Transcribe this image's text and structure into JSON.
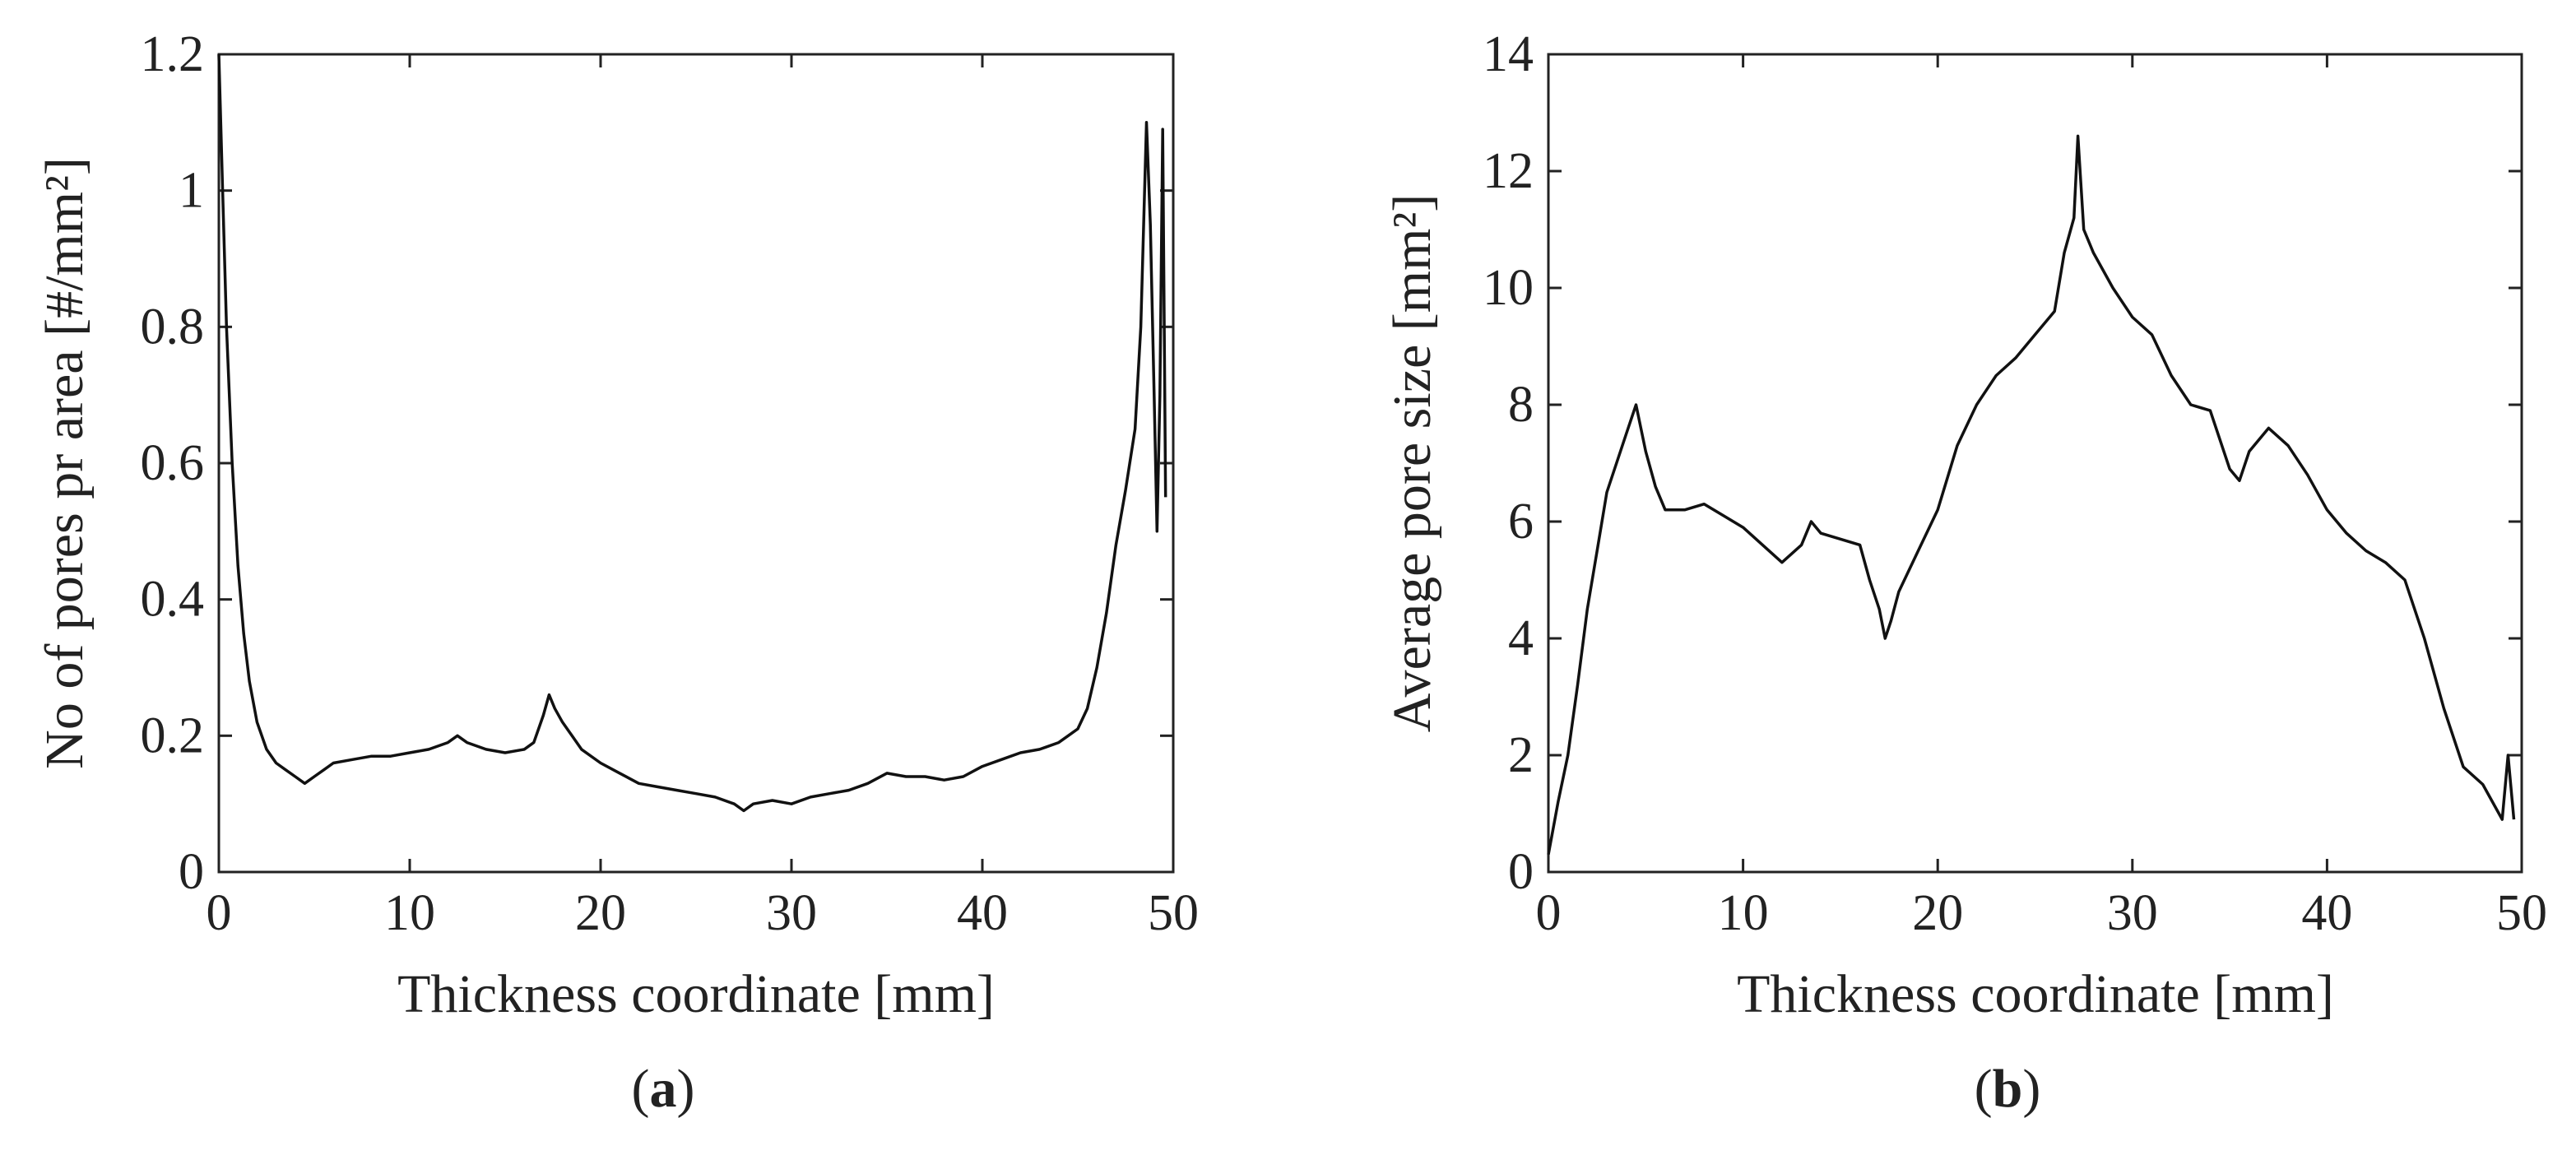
{
  "chart_data": [
    {
      "type": "line",
      "panel_label": "(a)",
      "xlabel": "Thickness coordinate [mm]",
      "ylabel": "No of pores pr area [#/mm²]",
      "xlim": [
        0,
        50
      ],
      "ylim": [
        0,
        1.2
      ],
      "xticks": [
        0,
        10,
        20,
        30,
        40,
        50
      ],
      "xtick_labels": [
        "0",
        "10",
        "20",
        "30",
        "40",
        "50"
      ],
      "yticks": [
        0,
        0.2,
        0.4,
        0.6,
        0.8,
        1,
        1.2
      ],
      "ytick_labels": [
        "0",
        "0.2",
        "0.4",
        "0.6",
        "0.8",
        "1",
        "1.2"
      ],
      "grid": false,
      "line_color": "#111111",
      "series": [
        {
          "x": [
            0,
            0.2,
            0.4,
            0.7,
            1.0,
            1.3,
            1.6,
            2.0,
            2.5,
            3.0,
            3.5,
            4.0,
            4.5,
            5.0,
            5.5,
            6.0,
            7.0,
            8.0,
            9.0,
            10.0,
            11.0,
            12.0,
            12.5,
            13.0,
            14.0,
            15.0,
            16.0,
            16.5,
            17.0,
            17.3,
            17.6,
            18.0,
            18.5,
            19.0,
            20.0,
            21.0,
            22.0,
            23.0,
            24.0,
            25.0,
            26.0,
            27.0,
            27.5,
            28.0,
            29.0,
            30.0,
            31.0,
            32.0,
            33.0,
            34.0,
            35.0,
            36.0,
            37.0,
            38.0,
            39.0,
            40.0,
            41.0,
            42.0,
            43.0,
            44.0,
            44.5,
            45.0,
            45.5,
            46.0,
            46.5,
            47.0,
            47.5,
            48.0,
            48.3,
            48.6,
            48.8,
            49.0,
            49.15,
            49.3,
            49.45,
            49.6
          ],
          "y": [
            1.2,
            1.0,
            0.8,
            0.6,
            0.45,
            0.35,
            0.28,
            0.22,
            0.18,
            0.16,
            0.15,
            0.14,
            0.13,
            0.14,
            0.15,
            0.16,
            0.165,
            0.17,
            0.17,
            0.175,
            0.18,
            0.19,
            0.2,
            0.19,
            0.18,
            0.175,
            0.18,
            0.19,
            0.23,
            0.26,
            0.24,
            0.22,
            0.2,
            0.18,
            0.16,
            0.145,
            0.13,
            0.125,
            0.12,
            0.115,
            0.11,
            0.1,
            0.09,
            0.1,
            0.105,
            0.1,
            0.11,
            0.115,
            0.12,
            0.13,
            0.145,
            0.14,
            0.14,
            0.135,
            0.14,
            0.155,
            0.165,
            0.175,
            0.18,
            0.19,
            0.2,
            0.21,
            0.24,
            0.3,
            0.38,
            0.48,
            0.56,
            0.65,
            0.8,
            1.1,
            0.95,
            0.7,
            0.5,
            0.7,
            1.09,
            0.55
          ]
        }
      ]
    },
    {
      "type": "line",
      "panel_label": "(b)",
      "xlabel": "Thickness coordinate [mm]",
      "ylabel": "Average pore size [mm²]",
      "xlim": [
        0,
        50
      ],
      "ylim": [
        0,
        14
      ],
      "xticks": [
        0,
        10,
        20,
        30,
        40,
        50
      ],
      "xtick_labels": [
        "0",
        "10",
        "20",
        "30",
        "40",
        "50"
      ],
      "yticks": [
        0,
        2,
        4,
        6,
        8,
        10,
        12,
        14
      ],
      "ytick_labels": [
        "0",
        "2",
        "4",
        "6",
        "8",
        "10",
        "12",
        "14"
      ],
      "grid": false,
      "line_color": "#111111",
      "series": [
        {
          "x": [
            0,
            0.5,
            1.0,
            1.5,
            2.0,
            2.5,
            3.0,
            3.5,
            4.0,
            4.5,
            5.0,
            5.5,
            6.0,
            7.0,
            8.0,
            9.0,
            10.0,
            11.0,
            12.0,
            13.0,
            13.5,
            14.0,
            15.0,
            16.0,
            16.5,
            17.0,
            17.3,
            17.6,
            18.0,
            19.0,
            20.0,
            21.0,
            22.0,
            23.0,
            24.0,
            25.0,
            26.0,
            26.5,
            27.0,
            27.2,
            27.5,
            28.0,
            29.0,
            30.0,
            31.0,
            32.0,
            33.0,
            34.0,
            35.0,
            35.5,
            36.0,
            37.0,
            38.0,
            39.0,
            40.0,
            41.0,
            42.0,
            43.0,
            44.0,
            45.0,
            46.0,
            47.0,
            48.0,
            49.0,
            49.3,
            49.6
          ],
          "y": [
            0.3,
            1.2,
            2.0,
            3.2,
            4.5,
            5.5,
            6.5,
            7.0,
            7.5,
            8.0,
            7.2,
            6.6,
            6.2,
            6.2,
            6.3,
            6.1,
            5.9,
            5.6,
            5.3,
            5.6,
            6.0,
            5.8,
            5.7,
            5.6,
            5.0,
            4.5,
            4.0,
            4.3,
            4.8,
            5.5,
            6.2,
            7.3,
            8.0,
            8.5,
            8.8,
            9.2,
            9.6,
            10.6,
            11.2,
            12.6,
            11.0,
            10.6,
            10.0,
            9.5,
            9.2,
            8.5,
            8.0,
            7.9,
            6.9,
            6.7,
            7.2,
            7.6,
            7.3,
            6.8,
            6.2,
            5.8,
            5.5,
            5.3,
            5.0,
            4.0,
            2.8,
            1.8,
            1.5,
            0.9,
            2.0,
            0.9
          ]
        }
      ]
    }
  ]
}
